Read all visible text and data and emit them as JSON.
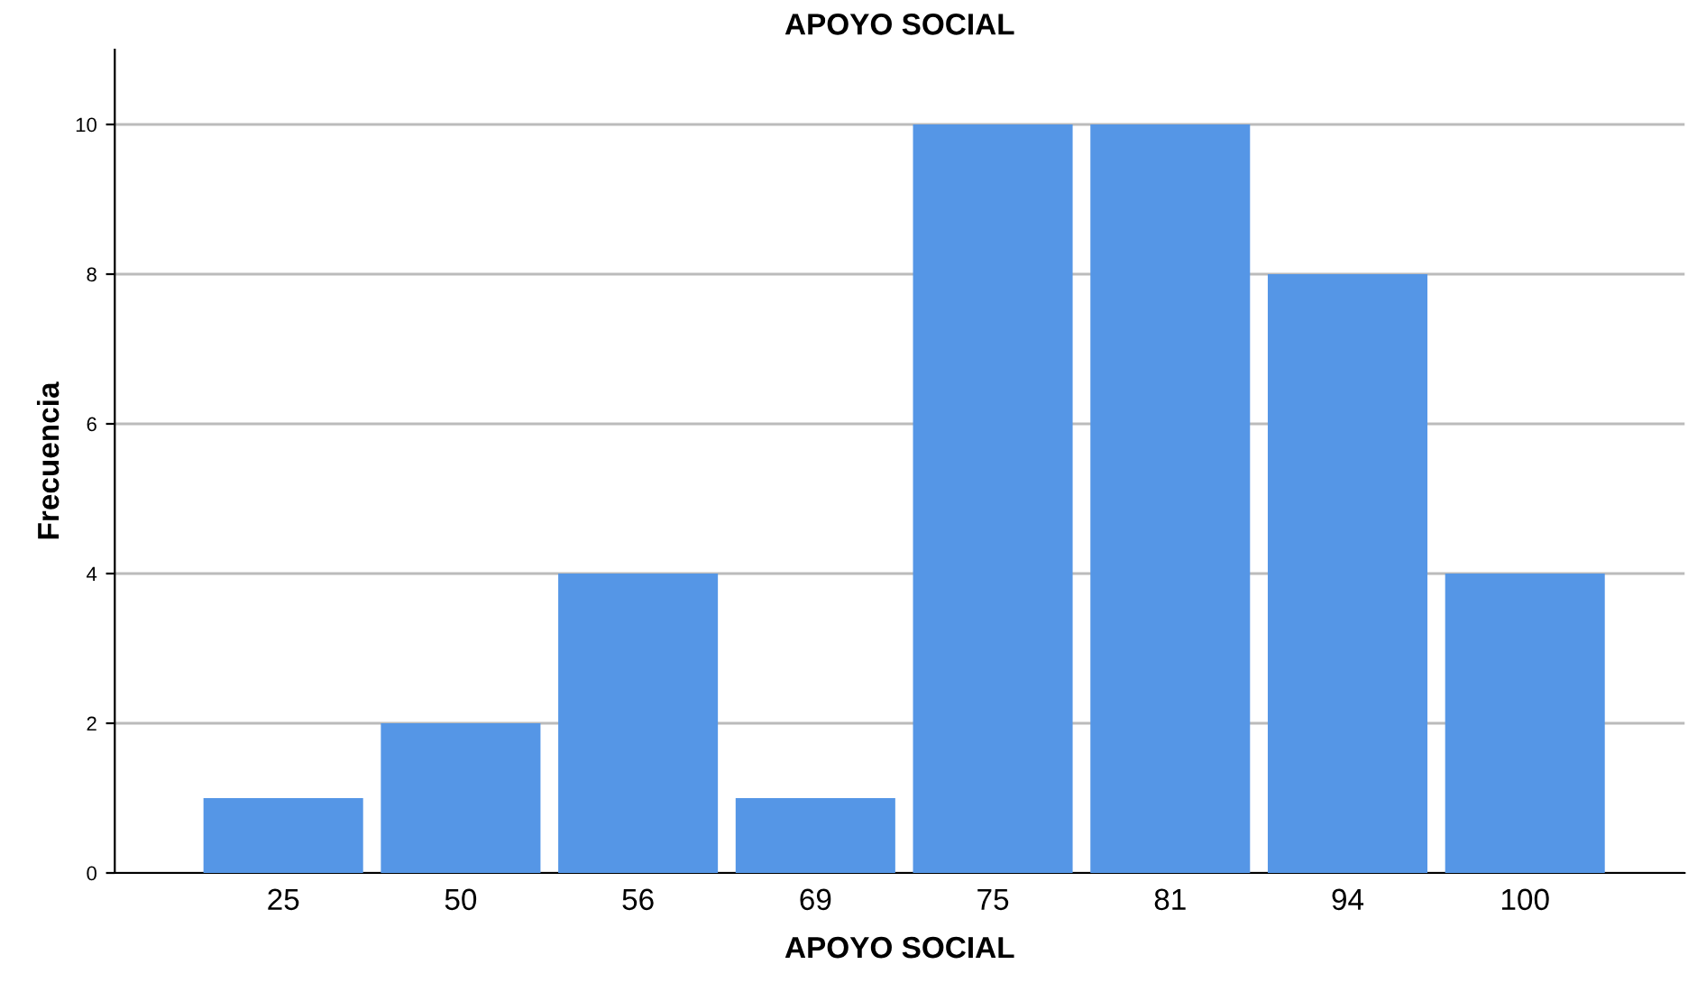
{
  "chart_data": {
    "type": "bar",
    "title": "APOYO SOCIAL",
    "xlabel": "APOYO SOCIAL",
    "ylabel": "Frecuencia",
    "categories": [
      "25",
      "50",
      "56",
      "69",
      "75",
      "81",
      "94",
      "100"
    ],
    "values": [
      1,
      2,
      4,
      1,
      10,
      10,
      8,
      4
    ],
    "color": "#5596e6",
    "ylim": [
      0,
      11
    ],
    "yticks": [
      0,
      2,
      4,
      6,
      8,
      10
    ],
    "grid": "y"
  }
}
